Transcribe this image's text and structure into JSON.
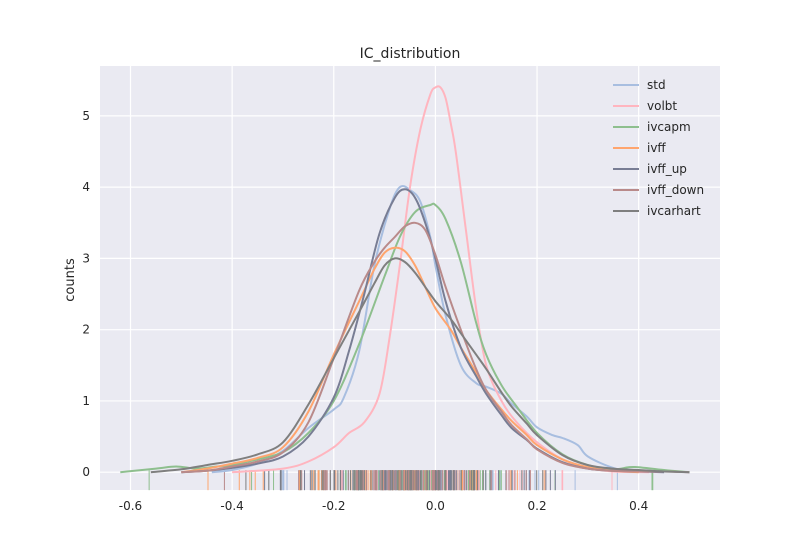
{
  "chart_data": {
    "type": "line",
    "title": "IC_distribution",
    "xlabel": "",
    "ylabel": "counts",
    "xlim": [
      -0.66,
      0.56
    ],
    "ylim": [
      -0.25,
      5.7
    ],
    "x_ticks": [
      -0.6,
      -0.4,
      -0.2,
      0.0,
      0.2,
      0.4
    ],
    "x_tick_labels": [
      "-0.6",
      "-0.4",
      "-0.2",
      "0.0",
      "0.2",
      "0.4"
    ],
    "y_ticks": [
      0,
      1,
      2,
      3,
      4,
      5
    ],
    "y_tick_labels": [
      "0",
      "1",
      "2",
      "3",
      "4",
      "5"
    ],
    "grid": true,
    "legend_position": "top-right",
    "series": [
      {
        "name": "std",
        "color": "#a8bee0",
        "x": [
          -0.44,
          -0.4,
          -0.35,
          -0.3,
          -0.25,
          -0.2,
          -0.18,
          -0.15,
          -0.12,
          -0.09,
          -0.07,
          -0.05,
          -0.03,
          -0.01,
          0.0,
          0.02,
          0.05,
          0.08,
          0.1,
          0.13,
          0.15,
          0.18,
          0.2,
          0.23,
          0.25,
          0.28,
          0.3,
          0.35,
          0.4
        ],
        "y": [
          0.0,
          0.03,
          0.12,
          0.3,
          0.62,
          0.88,
          1.05,
          1.7,
          2.9,
          3.7,
          4.0,
          3.96,
          3.8,
          3.3,
          2.9,
          2.2,
          1.5,
          1.25,
          1.2,
          1.1,
          0.96,
          0.78,
          0.63,
          0.52,
          0.48,
          0.38,
          0.22,
          0.06,
          0.0
        ]
      },
      {
        "name": "volbt",
        "color": "#ffb5bf",
        "x": [
          -0.4,
          -0.3,
          -0.25,
          -0.2,
          -0.17,
          -0.14,
          -0.11,
          -0.09,
          -0.07,
          -0.05,
          -0.03,
          -0.01,
          0.0,
          0.01,
          0.02,
          0.03,
          0.04,
          0.06,
          0.08,
          0.1,
          0.13,
          0.16,
          0.2,
          0.25,
          0.3,
          0.35,
          0.42
        ],
        "y": [
          0.0,
          0.05,
          0.15,
          0.35,
          0.55,
          0.7,
          1.1,
          1.9,
          2.9,
          4.0,
          4.8,
          5.3,
          5.4,
          5.4,
          5.25,
          4.9,
          4.5,
          3.4,
          2.3,
          1.5,
          1.0,
          0.7,
          0.42,
          0.18,
          0.06,
          0.01,
          0.0
        ]
      },
      {
        "name": "ivcapm",
        "color": "#8ebf8e",
        "x": [
          -0.62,
          -0.55,
          -0.51,
          -0.47,
          -0.43,
          -0.4,
          -0.35,
          -0.3,
          -0.25,
          -0.2,
          -0.15,
          -0.1,
          -0.07,
          -0.04,
          -0.01,
          0.0,
          0.02,
          0.05,
          0.08,
          0.1,
          0.13,
          0.16,
          0.2,
          0.25,
          0.3,
          0.35,
          0.38,
          0.4,
          0.45,
          0.5
        ],
        "y": [
          0.0,
          0.05,
          0.08,
          0.05,
          0.08,
          0.1,
          0.18,
          0.28,
          0.55,
          1.0,
          1.8,
          2.75,
          3.3,
          3.65,
          3.75,
          3.75,
          3.55,
          2.95,
          2.1,
          1.65,
          1.22,
          0.92,
          0.55,
          0.25,
          0.1,
          0.04,
          0.07,
          0.07,
          0.03,
          0.0
        ]
      },
      {
        "name": "ivff",
        "color": "#ffa56e",
        "x": [
          -0.5,
          -0.45,
          -0.4,
          -0.35,
          -0.3,
          -0.25,
          -0.2,
          -0.15,
          -0.12,
          -0.1,
          -0.08,
          -0.06,
          -0.04,
          -0.02,
          0.0,
          0.03,
          0.05,
          0.08,
          0.1,
          0.13,
          0.15,
          0.18,
          0.2,
          0.25,
          0.3,
          0.35,
          0.4
        ],
        "y": [
          0.0,
          0.05,
          0.12,
          0.2,
          0.35,
          0.85,
          1.65,
          2.4,
          2.85,
          3.08,
          3.15,
          3.1,
          2.9,
          2.6,
          2.3,
          2.0,
          1.75,
          1.4,
          1.15,
          0.88,
          0.72,
          0.52,
          0.38,
          0.18,
          0.07,
          0.02,
          0.0
        ]
      },
      {
        "name": "ivff_up",
        "color": "#787d94",
        "x": [
          -0.5,
          -0.45,
          -0.4,
          -0.35,
          -0.3,
          -0.25,
          -0.2,
          -0.17,
          -0.14,
          -0.11,
          -0.08,
          -0.06,
          -0.04,
          -0.02,
          0.0,
          0.02,
          0.05,
          0.08,
          0.1,
          0.13,
          0.15,
          0.18,
          0.2,
          0.25,
          0.3,
          0.35,
          0.4,
          0.45
        ],
        "y": [
          0.0,
          0.02,
          0.06,
          0.12,
          0.22,
          0.5,
          1.05,
          1.7,
          2.5,
          3.35,
          3.85,
          3.97,
          3.85,
          3.5,
          3.0,
          2.4,
          1.75,
          1.35,
          1.1,
          0.8,
          0.62,
          0.45,
          0.33,
          0.14,
          0.05,
          0.02,
          0.01,
          0.0
        ]
      },
      {
        "name": "ivff_down",
        "color": "#b98a8a",
        "x": [
          -0.5,
          -0.45,
          -0.4,
          -0.35,
          -0.3,
          -0.25,
          -0.2,
          -0.15,
          -0.12,
          -0.1,
          -0.08,
          -0.06,
          -0.04,
          -0.02,
          0.0,
          0.02,
          0.05,
          0.08,
          0.1,
          0.13,
          0.15,
          0.18,
          0.2,
          0.25,
          0.3,
          0.35,
          0.4,
          0.45,
          0.5
        ],
        "y": [
          0.0,
          0.02,
          0.08,
          0.15,
          0.28,
          0.7,
          1.6,
          2.55,
          2.95,
          3.15,
          3.3,
          3.45,
          3.5,
          3.4,
          3.05,
          2.6,
          2.0,
          1.45,
          1.15,
          0.85,
          0.66,
          0.46,
          0.32,
          0.13,
          0.05,
          0.02,
          0.01,
          0.01,
          0.0
        ]
      },
      {
        "name": "ivcarhart",
        "color": "#7f7f7f",
        "x": [
          -0.56,
          -0.5,
          -0.45,
          -0.4,
          -0.35,
          -0.3,
          -0.25,
          -0.2,
          -0.15,
          -0.12,
          -0.1,
          -0.08,
          -0.06,
          -0.04,
          -0.02,
          0.0,
          0.03,
          0.05,
          0.08,
          0.1,
          0.13,
          0.15,
          0.18,
          0.2,
          0.25,
          0.3,
          0.35,
          0.4,
          0.45,
          0.5
        ],
        "y": [
          0.0,
          0.04,
          0.1,
          0.16,
          0.25,
          0.42,
          0.95,
          1.6,
          2.25,
          2.65,
          2.9,
          3.0,
          2.95,
          2.8,
          2.6,
          2.4,
          2.15,
          1.95,
          1.65,
          1.45,
          1.12,
          0.92,
          0.68,
          0.52,
          0.24,
          0.1,
          0.05,
          0.03,
          0.01,
          0.0
        ]
      }
    ]
  }
}
